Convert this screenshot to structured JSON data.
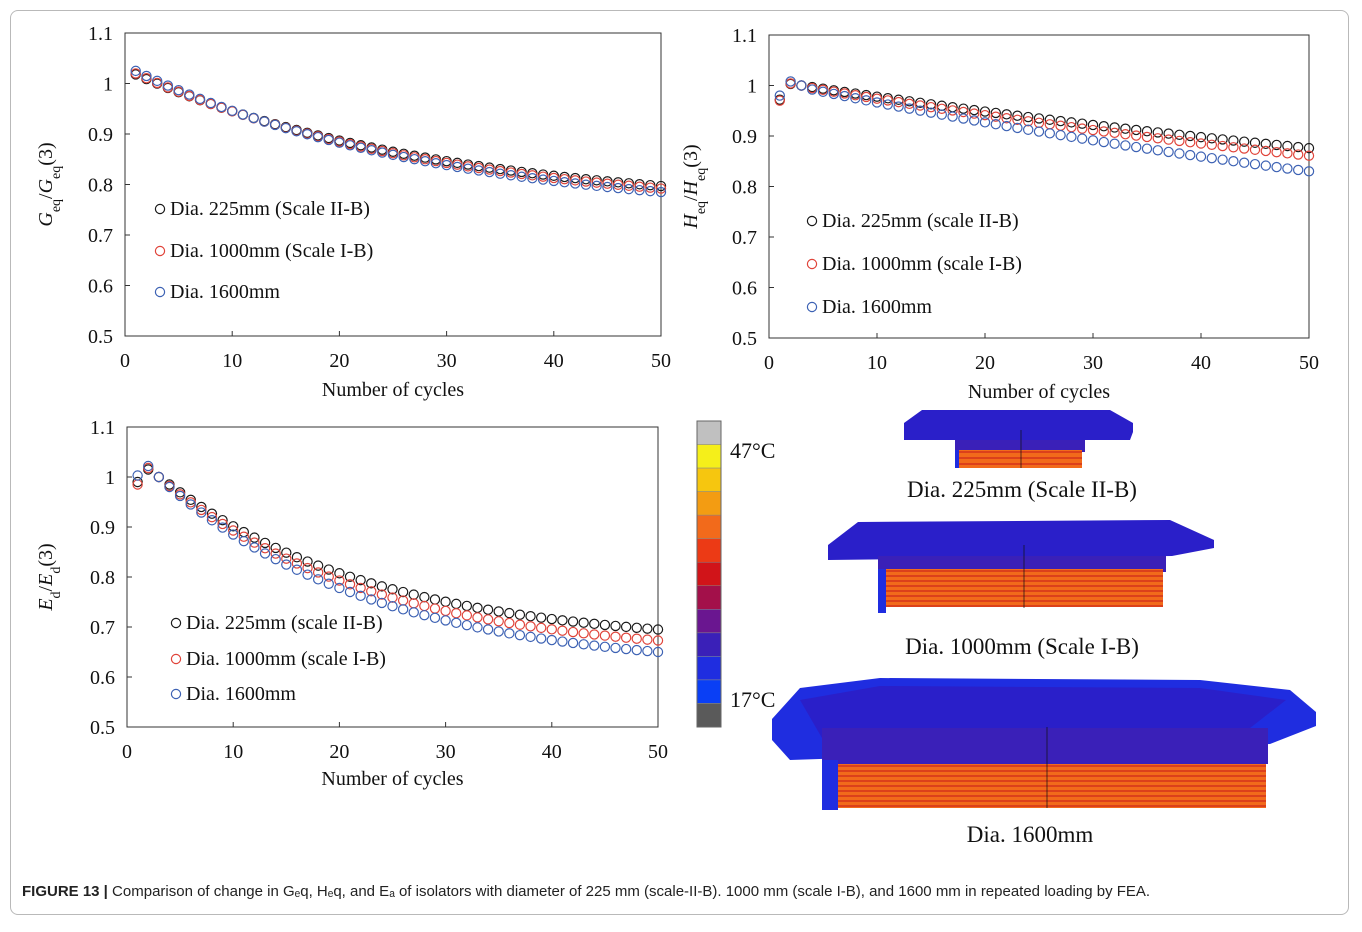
{
  "caption": {
    "label": "FIGURE 13 |",
    "text": " Comparison of change in Gₑq, Hₑq, and Eₐ of isolators with diameter of 225 mm (scale-II-B). 1000 mm (scale I-B), and 1600 mm in repeated loading by FEA."
  },
  "colors": {
    "black": "#1a1a1a",
    "red": "#e0443a",
    "blue": "#3d62b4"
  },
  "chart_data": [
    {
      "type": "scatter",
      "ylabel_base": "G",
      "ylabel_sub": "eq",
      "ylabel_text": "G_eq/G_eq(3)",
      "xlabel": "Number of cycles",
      "xlim": [
        0,
        50
      ],
      "ylim": [
        0.5,
        1.1
      ],
      "xticks": [
        "0",
        "10",
        "20",
        "30",
        "40",
        "50"
      ],
      "yticks": [
        "0.5",
        "0.6",
        "0.7",
        "0.8",
        "0.9",
        "1",
        "1.1"
      ],
      "grid": false,
      "legend_position": "lower-left",
      "x": "cycles 1..50",
      "series": [
        {
          "name": "Dia. 225mm (Scale II-B)",
          "color": "#1a1a1a",
          "start": 1.018,
          "end": 0.797,
          "rate": 0.035
        },
        {
          "name": "Dia. 1000mm (Scale I-B)",
          "color": "#e0443a",
          "start": 1.02,
          "end": 0.792,
          "rate": 0.035
        },
        {
          "name": "Dia. 1600mm",
          "color": "#3d62b4",
          "start": 1.025,
          "end": 0.785,
          "rate": 0.035
        }
      ]
    },
    {
      "type": "scatter",
      "ylabel_base": "H",
      "ylabel_sub": "eq",
      "ylabel_text": "H_eq/H_eq(3)",
      "xlabel": "Number of cycles",
      "xlim": [
        0,
        50
      ],
      "ylim": [
        0.5,
        1.1
      ],
      "xticks": [
        "0",
        "10",
        "20",
        "30",
        "40",
        "50"
      ],
      "yticks": [
        "0.5",
        "0.6",
        "0.7",
        "0.8",
        "0.9",
        "1",
        "1.1"
      ],
      "grid": false,
      "legend_position": "lower-left",
      "series": [
        {
          "name": "Dia. 225mm (scale II-B)",
          "color": "#1a1a1a",
          "first": [
            0.972,
            1.003,
            1.0,
            0.997
          ],
          "end": 0.876,
          "rate": 0.01
        },
        {
          "name": "Dia. 1000mm (scale I-B)",
          "color": "#e0443a",
          "first": [
            0.97,
            1.004,
            1.0,
            0.995
          ],
          "end": 0.861,
          "rate": 0.01
        },
        {
          "name": "Dia. 1600mm",
          "color": "#3d62b4",
          "first": [
            0.98,
            1.008,
            1.0,
            0.992
          ],
          "end": 0.83,
          "rate": 0.01
        }
      ]
    },
    {
      "type": "scatter",
      "ylabel_base": "E",
      "ylabel_sub": "d",
      "ylabel_text": "E_d/E_d(3)",
      "xlabel": "Number of cycles",
      "xlim": [
        0,
        50
      ],
      "ylim": [
        0.5,
        1.1
      ],
      "xticks": [
        "0",
        "10",
        "20",
        "30",
        "40",
        "50"
      ],
      "yticks": [
        "0.5",
        "0.6",
        "0.7",
        "0.8",
        "0.9",
        "1",
        "1.1"
      ],
      "grid": false,
      "legend_position": "lower-left",
      "series": [
        {
          "name": "Dia. 225mm (scale II-B)",
          "color": "#1a1a1a",
          "first": [
            0.99,
            1.015,
            1.0,
            0.985
          ],
          "end": 0.695,
          "rate": 0.05
        },
        {
          "name": "Dia. 1000mm (scale I-B)",
          "color": "#e0443a",
          "first": [
            0.985,
            1.018,
            1.0,
            0.982
          ],
          "end": 0.673,
          "rate": 0.05
        },
        {
          "name": "Dia. 1600mm",
          "color": "#3d62b4",
          "first": [
            1.003,
            1.022,
            1.0,
            0.98
          ],
          "end": 0.65,
          "rate": 0.05
        }
      ]
    }
  ],
  "colorbar": {
    "max_label": "47°C",
    "min_label": "17°C",
    "colors": [
      "#c0c0c0",
      "#f5ef1a",
      "#f6c60f",
      "#f39c12",
      "#f26a1b",
      "#ec3a15",
      "#d11419",
      "#a3104a",
      "#6a1690",
      "#3a20b8",
      "#1f2de0",
      "#0a3ff5",
      "#5a5a5a"
    ]
  },
  "isolators": [
    {
      "label": "Dia. 225mm (Scale II-B)"
    },
    {
      "label": "Dia. 1000mm (Scale I-B)"
    },
    {
      "label": "Dia. 1600mm"
    }
  ]
}
